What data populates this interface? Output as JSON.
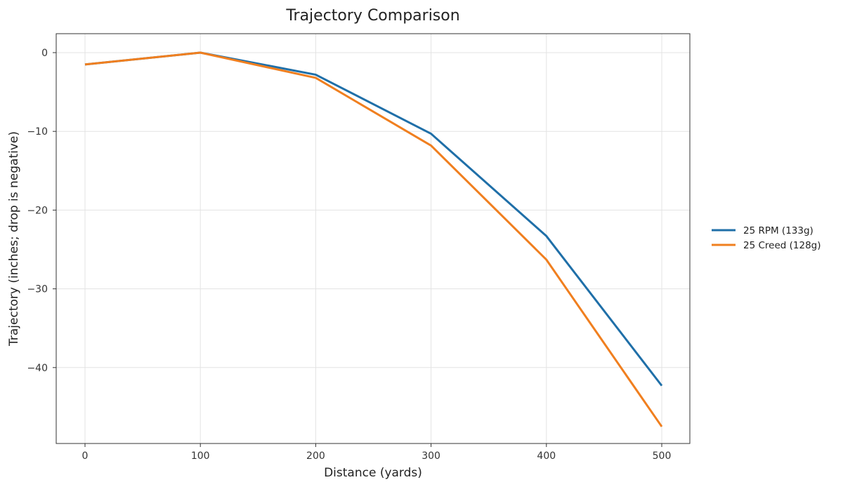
{
  "chart_data": {
    "type": "line",
    "title": "Trajectory Comparison",
    "xlabel": "Distance (yards)",
    "ylabel": "Trajectory (inches; drop is negative)",
    "x": [
      0,
      100,
      200,
      300,
      400,
      500
    ],
    "xticks": [
      0,
      100,
      200,
      300,
      400,
      500
    ],
    "yticks": [
      0,
      -10,
      -20,
      -30,
      -40
    ],
    "xlim": [
      -25,
      525
    ],
    "ylim": [
      -49.8,
      2.4
    ],
    "grid": true,
    "legend_position": "right-outside",
    "series": [
      {
        "name": "25 RPM (133g)",
        "color": "#1f6fa8",
        "values": [
          -1.5,
          0,
          -2.8,
          -10.3,
          -23.3,
          -42.3
        ]
      },
      {
        "name": "25 Creed (128g)",
        "color": "#f07f1f",
        "values": [
          -1.5,
          0,
          -3.2,
          -11.8,
          -26.3,
          -47.5
        ]
      }
    ]
  }
}
